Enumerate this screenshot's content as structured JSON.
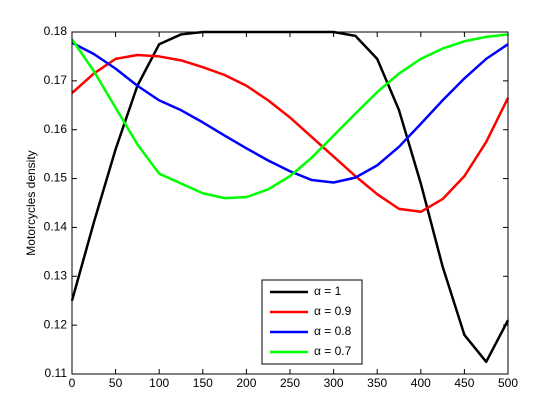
{
  "chart_data": {
    "type": "line",
    "ylabel": "Motorcycles density",
    "x": [
      0,
      25,
      50,
      75,
      100,
      125,
      150,
      175,
      200,
      225,
      250,
      275,
      300,
      325,
      350,
      375,
      400,
      425,
      450,
      475,
      500
    ],
    "series": [
      {
        "name": "α = 1",
        "color": "#000000",
        "values": [
          0.125,
          0.141,
          0.156,
          0.169,
          0.1775,
          0.1795,
          0.18,
          0.18,
          0.18,
          0.18,
          0.18,
          0.18,
          0.18,
          0.1792,
          0.1745,
          0.164,
          0.149,
          0.132,
          0.118,
          0.1125,
          0.121
        ]
      },
      {
        "name": "α = 0.9",
        "color": "#ff0000",
        "values": [
          0.1675,
          0.1715,
          0.1745,
          0.1753,
          0.175,
          0.1742,
          0.1728,
          0.1712,
          0.169,
          0.166,
          0.1625,
          0.1585,
          0.1545,
          0.1505,
          0.1468,
          0.1438,
          0.1432,
          0.1458,
          0.1505,
          0.1575,
          0.1665
        ]
      },
      {
        "name": "α = 0.8",
        "color": "#0000ff",
        "values": [
          0.1778,
          0.1755,
          0.1725,
          0.169,
          0.166,
          0.164,
          0.1615,
          0.1588,
          0.1562,
          0.1537,
          0.1515,
          0.1497,
          0.1492,
          0.1502,
          0.1527,
          0.1565,
          0.1612,
          0.166,
          0.1705,
          0.1745,
          0.1775
        ]
      },
      {
        "name": "α = 0.7",
        "color": "#00ff00",
        "values": [
          0.1785,
          0.172,
          0.1645,
          0.157,
          0.151,
          0.149,
          0.147,
          0.146,
          0.1462,
          0.1478,
          0.1505,
          0.1543,
          0.1588,
          0.1633,
          0.1677,
          0.1715,
          0.1745,
          0.1766,
          0.1781,
          0.179,
          0.1795
        ]
      }
    ],
    "xlim": [
      0,
      500
    ],
    "xticks": [
      0,
      50,
      100,
      150,
      200,
      250,
      300,
      350,
      400,
      450,
      500
    ],
    "ylim": [
      0.11,
      0.18
    ],
    "yticks": [
      0.11,
      0.12,
      0.13,
      0.14,
      0.15,
      0.16,
      0.17,
      0.18
    ],
    "legend": "lower-center"
  }
}
